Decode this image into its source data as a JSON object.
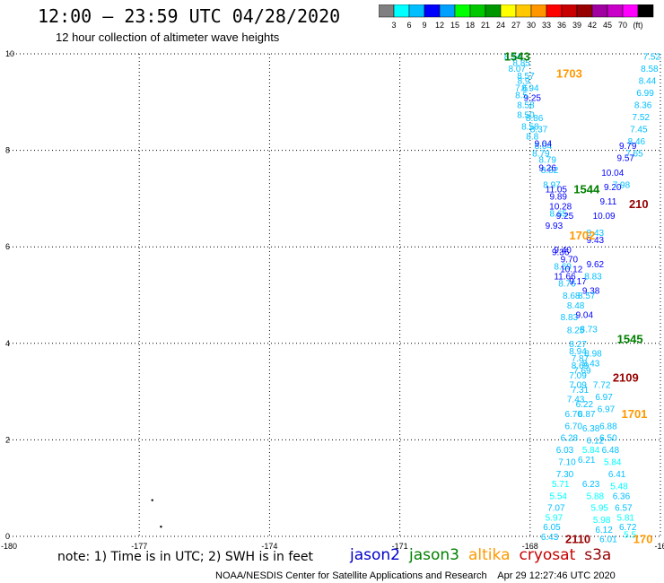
{
  "header": {
    "title": "12:00 – 23:59 UTC 04/28/2020",
    "subtitle": "12 hour collection of altimeter wave heights"
  },
  "colorbar": {
    "colors": [
      "#808080",
      "#00ffff",
      "#00bfff",
      "#0000ff",
      "#00a0ff",
      "#00ff00",
      "#00c800",
      "#009600",
      "#ffff00",
      "#ffc800",
      "#ff9600",
      "#ff0000",
      "#c80000",
      "#960000",
      "#a000a0",
      "#c800c8",
      "#ff00ff",
      "#000000"
    ],
    "labels": [
      "3",
      "6",
      "9",
      "12",
      "15",
      "18",
      "21",
      "24",
      "27",
      "30",
      "33",
      "36",
      "39",
      "42",
      "45",
      "70",
      "(ft)"
    ]
  },
  "footer": {
    "note": "note: 1) Time is in UTC; 2) SWH is in feet",
    "satellites": [
      {
        "name": "jason2",
        "color": "#0000c8"
      },
      {
        "name": "jason3",
        "color": "#008000"
      },
      {
        "name": "altika",
        "color": "#ff9900"
      },
      {
        "name": "cryosat",
        "color": "#c80000"
      },
      {
        "name": "s3a",
        "color": "#960000"
      }
    ],
    "credit": "NOAA/NESDIS Center for Satellite Applications and Research    Apr 29 12:27:46 UTC 2020"
  },
  "chart_data": {
    "type": "scatter",
    "xlim": [
      -180,
      -165
    ],
    "ylim": [
      0,
      10
    ],
    "xticks": [
      "-180",
      "-177",
      "-174",
      "-171",
      "-168",
      "-16"
    ],
    "yticks": [
      "0",
      "2",
      "4",
      "6",
      "8",
      "10"
    ],
    "grid": true,
    "time_labels": [
      {
        "text": "1543",
        "x": -168.3,
        "y": 9.95,
        "color": "#008000"
      },
      {
        "text": "1703",
        "x": -167.1,
        "y": 9.6,
        "color": "#ff9900"
      },
      {
        "text": "1544",
        "x": -166.7,
        "y": 7.2,
        "color": "#008000"
      },
      {
        "text": "210",
        "x": -165.5,
        "y": 6.9,
        "color": "#960000"
      },
      {
        "text": "1702",
        "x": -166.8,
        "y": 6.25,
        "color": "#ff9900"
      },
      {
        "text": "1545",
        "x": -165.7,
        "y": 4.1,
        "color": "#008000"
      },
      {
        "text": "2109",
        "x": -165.8,
        "y": 3.3,
        "color": "#960000"
      },
      {
        "text": "1701",
        "x": -165.6,
        "y": 2.55,
        "color": "#ff9900"
      },
      {
        "text": "2110",
        "x": -166.9,
        "y": -0.05,
        "color": "#960000"
      },
      {
        "text": "170",
        "x": -165.4,
        "y": -0.05,
        "color": "#ff9900"
      }
    ],
    "series": [
      {
        "name": "jason3",
        "points": [
          {
            "x": -168.4,
            "y": 9.95,
            "v": "8.14"
          },
          {
            "x": -168.2,
            "y": 9.82,
            "v": "8.85"
          },
          {
            "x": -168.3,
            "y": 9.7,
            "v": "8.07"
          },
          {
            "x": -168.1,
            "y": 9.55,
            "v": "8.57"
          },
          {
            "x": -168.15,
            "y": 9.45,
            "v": "8.9"
          },
          {
            "x": -168.0,
            "y": 9.3,
            "v": "8.94"
          },
          {
            "x": -168.2,
            "y": 9.3,
            "v": "7.6"
          },
          {
            "x": -167.95,
            "y": 9.1,
            "v": "9.25"
          },
          {
            "x": -168.2,
            "y": 9.15,
            "v": "8.5"
          },
          {
            "x": -168.1,
            "y": 8.95,
            "v": "8.58"
          },
          {
            "x": -168.1,
            "y": 8.75,
            "v": "8.50"
          },
          {
            "x": -167.9,
            "y": 8.68,
            "v": "8.86"
          },
          {
            "x": -168.0,
            "y": 8.5,
            "v": "8.58"
          },
          {
            "x": -167.8,
            "y": 8.45,
            "v": "8.37"
          },
          {
            "x": -167.95,
            "y": 8.3,
            "v": "8.8"
          },
          {
            "x": -167.7,
            "y": 8.1,
            "v": "8.04"
          },
          {
            "x": -167.75,
            "y": 7.95,
            "v": "8.79"
          },
          {
            "x": -167.6,
            "y": 7.82,
            "v": "8.79"
          },
          {
            "x": -167.55,
            "y": 7.6,
            "v": "8.82"
          },
          {
            "x": -167.5,
            "y": 7.3,
            "v": "8.97"
          },
          {
            "x": -167.35,
            "y": 6.7,
            "v": "8.65"
          },
          {
            "x": -167.3,
            "y": 5.9,
            "v": "9.36"
          },
          {
            "x": -167.25,
            "y": 5.6,
            "v": "8.69"
          },
          {
            "x": -167.15,
            "y": 5.25,
            "v": "8.76"
          },
          {
            "x": -167.05,
            "y": 5.0,
            "v": "8.68"
          },
          {
            "x": -166.95,
            "y": 4.8,
            "v": "8.48"
          },
          {
            "x": -167.1,
            "y": 4.55,
            "v": "8.83"
          },
          {
            "x": -166.95,
            "y": 4.28,
            "v": "8.25"
          },
          {
            "x": -166.9,
            "y": 4.0,
            "v": "8.27"
          },
          {
            "x": -166.85,
            "y": 3.7,
            "v": "7.87"
          },
          {
            "x": -166.8,
            "y": 3.45,
            "v": "7.69"
          },
          {
            "x": -166.9,
            "y": 3.15,
            "v": "7.09"
          },
          {
            "x": -166.95,
            "y": 2.85,
            "v": "7.43"
          },
          {
            "x": -167.0,
            "y": 2.55,
            "v": "6.70"
          },
          {
            "x": -167.0,
            "y": 2.3,
            "v": "6.70"
          },
          {
            "x": -167.1,
            "y": 2.05,
            "v": "6.28"
          },
          {
            "x": -167.2,
            "y": 1.8,
            "v": "6.03"
          },
          {
            "x": -167.15,
            "y": 1.55,
            "v": "7.10"
          },
          {
            "x": -167.2,
            "y": 1.3,
            "v": "7.30"
          },
          {
            "x": -167.3,
            "y": 1.1,
            "v": "5.71"
          },
          {
            "x": -167.35,
            "y": 0.85,
            "v": "5.54"
          },
          {
            "x": -167.4,
            "y": 0.6,
            "v": "7.07"
          },
          {
            "x": -167.45,
            "y": 0.4,
            "v": "5.97"
          },
          {
            "x": -167.5,
            "y": 0.2,
            "v": "6.05"
          },
          {
            "x": -167.55,
            "y": 0.0,
            "v": "6.43"
          }
        ]
      },
      {
        "name": "jason2",
        "points": [
          {
            "x": -167.7,
            "y": 8.15,
            "v": "9.04"
          },
          {
            "x": -167.6,
            "y": 7.65,
            "v": "9.26"
          },
          {
            "x": -167.4,
            "y": 7.2,
            "v": "11.05"
          },
          {
            "x": -167.35,
            "y": 7.05,
            "v": "9.89"
          },
          {
            "x": -167.3,
            "y": 6.85,
            "v": "10.28"
          },
          {
            "x": -167.2,
            "y": 6.65,
            "v": "9.25"
          },
          {
            "x": -167.45,
            "y": 6.45,
            "v": "9.93"
          },
          {
            "x": -167.25,
            "y": 5.95,
            "v": "9.40"
          },
          {
            "x": -167.1,
            "y": 5.75,
            "v": "9.70"
          },
          {
            "x": -167.05,
            "y": 5.55,
            "v": "10.12"
          },
          {
            "x": -167.2,
            "y": 5.4,
            "v": "11.66"
          },
          {
            "x": -166.9,
            "y": 5.3,
            "v": "9.17"
          },
          {
            "x": -166.6,
            "y": 5.1,
            "v": "9.38"
          },
          {
            "x": -166.5,
            "y": 5.65,
            "v": "9.62"
          },
          {
            "x": -166.5,
            "y": 6.15,
            "v": "9.43"
          },
          {
            "x": -166.3,
            "y": 6.65,
            "v": "10.09"
          },
          {
            "x": -166.2,
            "y": 6.95,
            "v": "9.11"
          },
          {
            "x": -166.1,
            "y": 7.25,
            "v": "9.20"
          },
          {
            "x": -166.1,
            "y": 7.55,
            "v": "10.04"
          },
          {
            "x": -165.8,
            "y": 7.85,
            "v": "9.57"
          },
          {
            "x": -165.75,
            "y": 8.1,
            "v": "9.79"
          },
          {
            "x": -166.75,
            "y": 4.6,
            "v": "9.04"
          }
        ]
      },
      {
        "name": "s3a",
        "points": [
          {
            "x": -165.2,
            "y": 9.95,
            "v": "7.52"
          },
          {
            "x": -165.25,
            "y": 9.7,
            "v": "8.58"
          },
          {
            "x": -165.3,
            "y": 9.45,
            "v": "8.44"
          },
          {
            "x": -165.35,
            "y": 9.2,
            "v": "6.99"
          },
          {
            "x": -165.4,
            "y": 8.95,
            "v": "8.36"
          },
          {
            "x": -165.45,
            "y": 8.7,
            "v": "7.52"
          },
          {
            "x": -165.5,
            "y": 8.45,
            "v": "7.45"
          },
          {
            "x": -165.55,
            "y": 8.2,
            "v": "8.46"
          },
          {
            "x": -165.6,
            "y": 7.95,
            "v": "7.65"
          },
          {
            "x": -165.9,
            "y": 7.3,
            "v": "7.98"
          },
          {
            "x": -166.5,
            "y": 6.3,
            "v": "8.43"
          },
          {
            "x": -166.55,
            "y": 5.4,
            "v": "8.83"
          },
          {
            "x": -166.7,
            "y": 5.0,
            "v": "8.57"
          },
          {
            "x": -166.65,
            "y": 4.3,
            "v": "8.73"
          },
          {
            "x": -166.55,
            "y": 3.8,
            "v": "8.98"
          },
          {
            "x": -166.6,
            "y": 3.6,
            "v": "8.43"
          },
          {
            "x": -166.35,
            "y": 3.15,
            "v": "7.72"
          },
          {
            "x": -166.3,
            "y": 2.9,
            "v": "6.97"
          },
          {
            "x": -166.25,
            "y": 2.65,
            "v": "6.97"
          },
          {
            "x": -166.2,
            "y": 2.3,
            "v": "6.88"
          },
          {
            "x": -166.2,
            "y": 2.05,
            "v": "6.50"
          },
          {
            "x": -166.15,
            "y": 1.8,
            "v": "6.48"
          },
          {
            "x": -166.1,
            "y": 1.55,
            "v": "5.84"
          },
          {
            "x": -166.0,
            "y": 1.3,
            "v": "6.41"
          },
          {
            "x": -165.95,
            "y": 1.05,
            "v": "5.48"
          },
          {
            "x": -165.9,
            "y": 0.85,
            "v": "6.36"
          },
          {
            "x": -165.85,
            "y": 0.6,
            "v": "6.57"
          },
          {
            "x": -165.8,
            "y": 0.4,
            "v": "5.81"
          },
          {
            "x": -165.75,
            "y": 0.2,
            "v": "6.72"
          },
          {
            "x": -165.7,
            "y": 0.05,
            "v": "5.5"
          }
        ]
      },
      {
        "name": "cryosat",
        "points": [
          {
            "x": -166.9,
            "y": 3.85,
            "v": "8.94"
          },
          {
            "x": -166.85,
            "y": 3.55,
            "v": "8.69"
          },
          {
            "x": -166.9,
            "y": 3.35,
            "v": "7.09"
          },
          {
            "x": -166.85,
            "y": 3.05,
            "v": "7.31"
          },
          {
            "x": -166.75,
            "y": 2.75,
            "v": "6.22"
          },
          {
            "x": -166.7,
            "y": 2.55,
            "v": "6.87"
          },
          {
            "x": -166.6,
            "y": 2.25,
            "v": "6.38"
          },
          {
            "x": -166.5,
            "y": 2.0,
            "v": "6.12"
          },
          {
            "x": -166.6,
            "y": 1.8,
            "v": "5.84"
          },
          {
            "x": -166.7,
            "y": 1.6,
            "v": "6.21"
          },
          {
            "x": -166.6,
            "y": 1.1,
            "v": "6.23"
          },
          {
            "x": -166.5,
            "y": 0.85,
            "v": "5.88"
          },
          {
            "x": -166.4,
            "y": 0.6,
            "v": "5.95"
          },
          {
            "x": -166.35,
            "y": 0.35,
            "v": "5.98"
          },
          {
            "x": -166.3,
            "y": 0.15,
            "v": "6.12"
          },
          {
            "x": -166.2,
            "y": -0.05,
            "v": "6.01"
          }
        ]
      }
    ],
    "isolated_points": [
      {
        "x": -176.7,
        "y": 0.75
      },
      {
        "x": -176.5,
        "y": 0.2
      }
    ]
  }
}
